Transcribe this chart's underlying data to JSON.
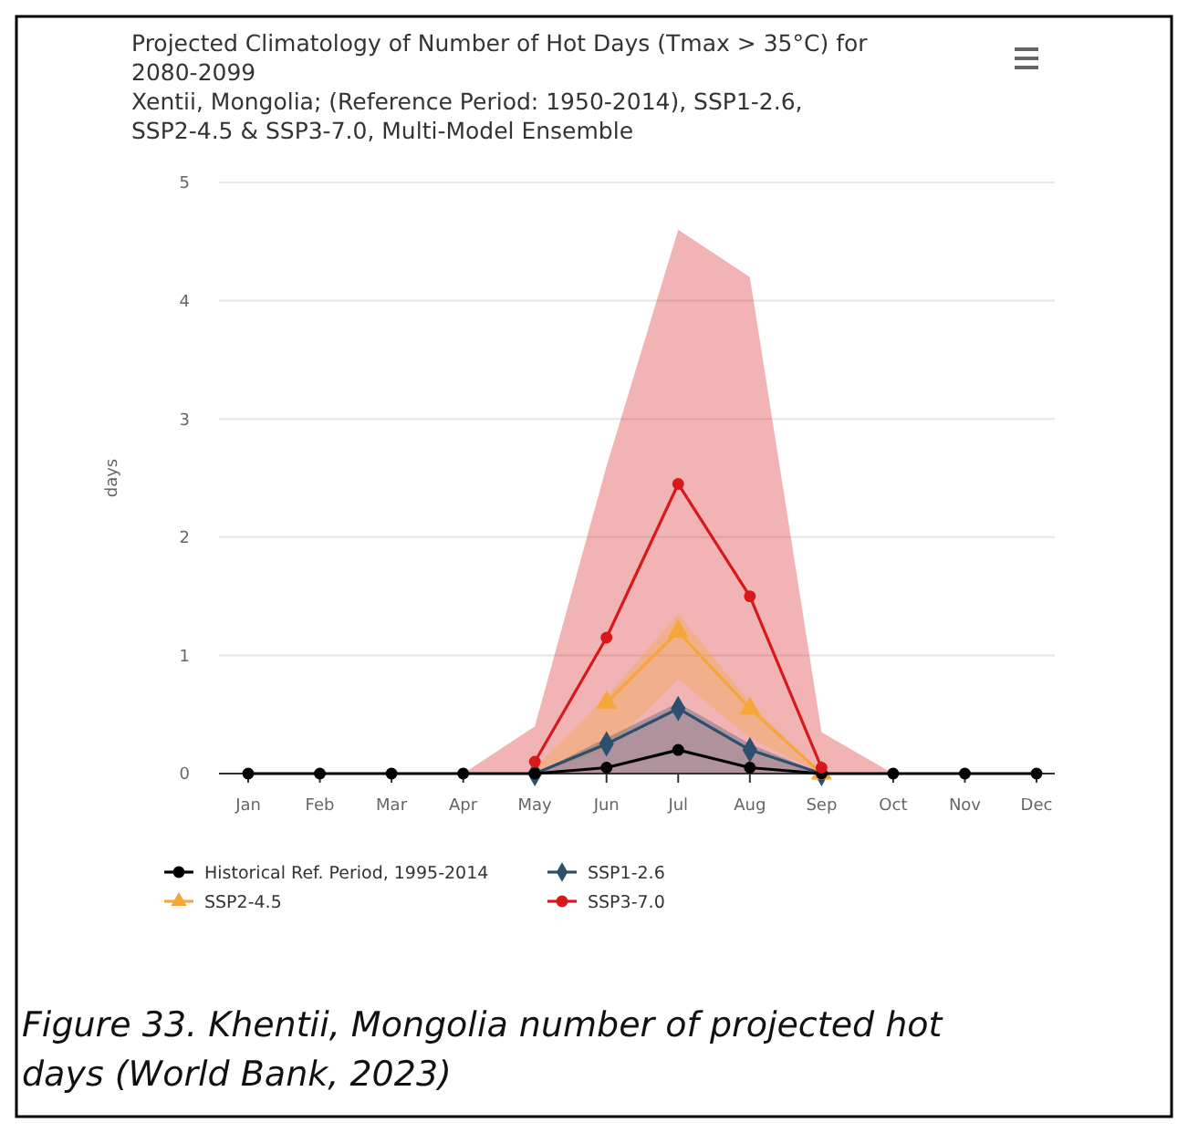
{
  "chart_data": {
    "type": "line",
    "title": "Projected Climatology of Number of Hot Days (Tmax > 35°C) for 2080-2099",
    "subtitle": "Xentii, Mongolia; (Reference Period: 1950-2014), SSP1-2.6, SSP2-4.5 & SSP3-7.0, Multi-Model Ensemble",
    "ylabel": "days",
    "categories": [
      "Jan",
      "Feb",
      "Mar",
      "Apr",
      "May",
      "Jun",
      "Jul",
      "Aug",
      "Sep",
      "Oct",
      "Nov",
      "Dec"
    ],
    "series": [
      {
        "name": "Historical Ref. Period, 1995-2014",
        "color": "#000000",
        "marker": "circle",
        "values": [
          0,
          0,
          0,
          0,
          0,
          0.05,
          0.2,
          0.05,
          0,
          0,
          0,
          0
        ]
      },
      {
        "name": "SSP1-2.6",
        "color": "#2c4f6e",
        "marker": "diamond",
        "values": [
          null,
          null,
          null,
          null,
          0,
          0.25,
          0.55,
          0.2,
          0,
          null,
          null,
          null
        ],
        "lower": [
          null,
          null,
          null,
          null,
          0,
          0,
          0,
          0,
          0,
          null,
          null,
          null
        ],
        "upper": [
          null,
          null,
          null,
          null,
          0,
          0.3,
          0.6,
          0.25,
          0,
          null,
          null,
          null
        ]
      },
      {
        "name": "SSP2-4.5",
        "color": "#f4a63a",
        "marker": "triangle",
        "values": [
          null,
          null,
          null,
          null,
          null,
          0.6,
          1.2,
          0.55,
          0,
          null,
          null,
          null
        ],
        "lower": [
          null,
          null,
          null,
          null,
          0,
          0.2,
          0.8,
          0.3,
          0,
          null,
          null,
          null
        ],
        "upper": [
          null,
          null,
          null,
          null,
          0.05,
          0.65,
          1.35,
          0.6,
          0,
          null,
          null,
          null
        ]
      },
      {
        "name": "SSP3-7.0",
        "color": "#d7191c",
        "marker": "circle",
        "values": [
          null,
          null,
          null,
          null,
          0.1,
          1.15,
          2.45,
          1.5,
          0.05,
          null,
          null,
          null
        ],
        "lower": [
          null,
          null,
          null,
          0,
          0,
          0,
          0,
          0,
          0,
          0,
          null,
          null
        ],
        "upper": [
          null,
          null,
          null,
          0,
          0.4,
          2.6,
          4.6,
          4.2,
          0.35,
          0,
          null,
          null
        ]
      }
    ],
    "ylim": [
      0,
      5
    ],
    "yticks": [
      0,
      1,
      2,
      3,
      4,
      5
    ],
    "grid": "y",
    "legend": "bottom",
    "annotations": [
      "Figure 33. Khentii, Mongolia number of projected hot days (World Bank, 2023)"
    ]
  }
}
